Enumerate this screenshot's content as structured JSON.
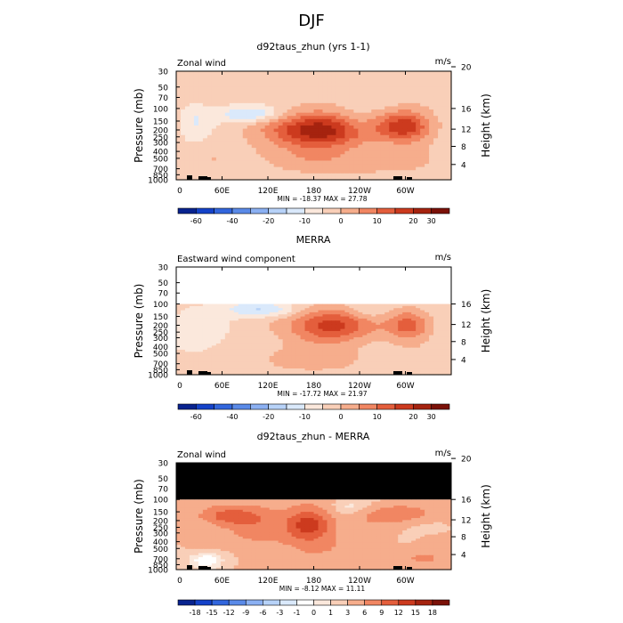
{
  "figure_title": "DJF",
  "colors": {
    "panel1": [
      "#08238f",
      "#1442c9",
      "#3266dd",
      "#5a8ae8",
      "#8bb0f2",
      "#b7d2f8",
      "#dae9fb",
      "#fbe8dc",
      "#f9cfb8",
      "#f6ad8c",
      "#f18662",
      "#e45e3c",
      "#cc3a1e",
      "#a5230f",
      "#7b1108"
    ],
    "panel3": [
      "#08238f",
      "#1442c9",
      "#3266dd",
      "#5a8ae8",
      "#8bb0f2",
      "#b7d2f8",
      "#dae9fb",
      "#ffffff",
      "#fbe8dc",
      "#f9cfb8",
      "#f6ad8c",
      "#f18662",
      "#e45e3c",
      "#cc3a1e",
      "#a5230f",
      "#7b1108"
    ]
  },
  "chart_data": [
    {
      "type": "heatmap",
      "title": "d92taus_zhun (yrs 1-1)",
      "left_label": "Zonal wind",
      "right_label": "m/s",
      "ylabel": "Pressure (mb)",
      "y2label": "Height (km)",
      "pressure_ticks": [
        "30",
        "50",
        "70",
        "100",
        "150",
        "200",
        "250",
        "300",
        "400",
        "500",
        "700",
        "850",
        "1000"
      ],
      "height_ticks": [
        "20",
        "16",
        "12",
        "8",
        "4"
      ],
      "x_ticks": [
        "0",
        "60E",
        "120E",
        "180",
        "120W",
        "60W"
      ],
      "stats": "MIN = -18.37   MAX =  27.78",
      "colorbar_labels": [
        "-60",
        "-40",
        "-20",
        "-10",
        "0",
        "10",
        "20",
        "30"
      ],
      "colorbar_label_pos": [
        1,
        3,
        5,
        7,
        9,
        11,
        13,
        14
      ],
      "blobs": [
        {
          "lon": 185,
          "p": 200,
          "w": 60,
          "h": 0.55,
          "v": 27.78
        },
        {
          "lon": 300,
          "p": 180,
          "w": 35,
          "h": 0.5,
          "v": 22
        },
        {
          "lon": 95,
          "p": 120,
          "w": 40,
          "h": 0.25,
          "v": -13
        },
        {
          "lon": 25,
          "p": 150,
          "w": 18,
          "h": 0.7,
          "v": -6
        },
        {
          "lon": 170,
          "p": 500,
          "w": 120,
          "h": 0.5,
          "v": 5
        },
        {
          "lon": 260,
          "p": 600,
          "w": 60,
          "h": 0.5,
          "v": 3
        },
        {
          "lon": 235,
          "p": 150,
          "w": 25,
          "h": 0.4,
          "v": -3
        }
      ],
      "base": 2,
      "pmin": 30,
      "vmin": -70,
      "vmax": 35
    },
    {
      "type": "heatmap",
      "title": "MERRA",
      "left_label": "Eastward wind component",
      "right_label": "m/s",
      "ylabel": "Pressure (mb)",
      "y2label": "Height (km)",
      "pressure_ticks": [
        "30",
        "50",
        "70",
        "100",
        "150",
        "200",
        "250",
        "300",
        "400",
        "500",
        "700",
        "850",
        "1000"
      ],
      "height_ticks": [
        "16",
        "12",
        "8",
        "4"
      ],
      "x_ticks": [
        "0",
        "60E",
        "120E",
        "180",
        "120W",
        "60W"
      ],
      "stats": "MIN = -17.72   MAX =  21.97",
      "colorbar_labels": [
        "-60",
        "-40",
        "-20",
        "-10",
        "0",
        "10",
        "20",
        "30"
      ],
      "colorbar_label_pos": [
        1,
        3,
        5,
        7,
        9,
        11,
        13,
        14
      ],
      "blobs": [
        {
          "lon": 200,
          "p": 200,
          "w": 55,
          "h": 0.55,
          "v": 21.97
        },
        {
          "lon": 305,
          "p": 200,
          "w": 30,
          "h": 0.5,
          "v": 17
        },
        {
          "lon": 110,
          "p": 120,
          "w": 45,
          "h": 0.25,
          "v": -12
        },
        {
          "lon": 30,
          "p": 300,
          "w": 30,
          "h": 0.8,
          "v": -5
        },
        {
          "lon": 175,
          "p": 600,
          "w": 130,
          "h": 0.5,
          "v": 6
        },
        {
          "lon": 250,
          "p": 130,
          "w": 25,
          "h": 0.3,
          "v": -4
        }
      ],
      "base": 1,
      "pmin": 100,
      "vmin": -70,
      "vmax": 35
    },
    {
      "type": "heatmap",
      "title": "d92taus_zhun - MERRA",
      "left_label": "Zonal wind",
      "right_label": "m/s",
      "ylabel": "Pressure (mb)",
      "y2label": "Height (km)",
      "pressure_ticks": [
        "30",
        "50",
        "70",
        "100",
        "150",
        "200",
        "250",
        "300",
        "400",
        "500",
        "700",
        "850",
        "1000"
      ],
      "height_ticks": [
        "20",
        "16",
        "12",
        "8",
        "4"
      ],
      "x_ticks": [
        "0",
        "60E",
        "120E",
        "180",
        "120W",
        "60W"
      ],
      "stats": "MIN = -8.12   MAX = 11.11",
      "colorbar_labels": [
        "-18",
        "-15",
        "-12",
        "-9",
        "-6",
        "-3",
        "-1",
        "0",
        "1",
        "3",
        "6",
        "9",
        "12",
        "15",
        "18"
      ],
      "colorbar_label_pos": [
        1,
        2,
        3,
        4,
        5,
        6,
        7,
        8,
        9,
        10,
        11,
        12,
        13,
        14,
        15
      ],
      "blobs": [
        {
          "lon": 175,
          "p": 220,
          "w": 30,
          "h": 0.55,
          "v": 11.11
        },
        {
          "lon": 60,
          "p": 170,
          "w": 40,
          "h": 0.35,
          "v": 7
        },
        {
          "lon": 300,
          "p": 160,
          "w": 45,
          "h": 0.3,
          "v": 6
        },
        {
          "lon": 110,
          "p": 300,
          "w": 50,
          "h": 0.9,
          "v": 4
        },
        {
          "lon": 230,
          "p": 130,
          "w": 25,
          "h": 0.25,
          "v": -3
        },
        {
          "lon": 40,
          "p": 700,
          "w": 30,
          "h": 0.35,
          "v": -5
        },
        {
          "lon": 300,
          "p": 400,
          "w": 25,
          "h": 0.35,
          "v": -2
        },
        {
          "lon": 250,
          "p": 500,
          "w": 60,
          "h": 0.7,
          "v": 3
        },
        {
          "lon": 330,
          "p": 750,
          "w": 40,
          "h": 0.3,
          "v": 2
        }
      ],
      "base": 3,
      "pmin": 100,
      "masked_above": 100,
      "vmin": -20,
      "vmax": 20
    }
  ]
}
